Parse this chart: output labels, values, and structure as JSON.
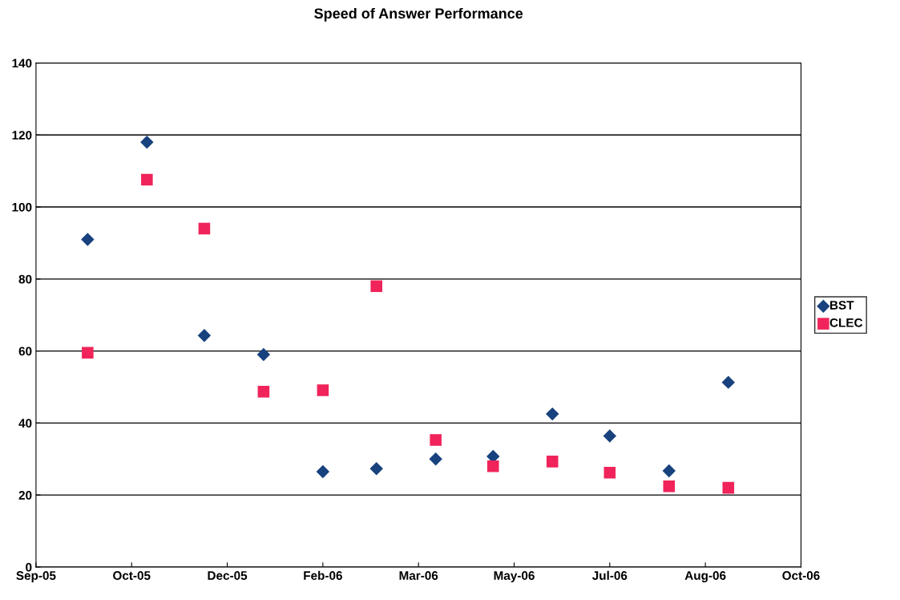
{
  "chart_data": {
    "type": "scatter",
    "title": "Speed of Answer Performance",
    "x": [
      "2005-10-01",
      "2005-11-01",
      "2005-12-01",
      "2006-01-01",
      "2006-02-01",
      "2006-03-01",
      "2006-04-01",
      "2006-05-01",
      "2006-06-01",
      "2006-07-01",
      "2006-08-01",
      "2006-09-01"
    ],
    "series": [
      {
        "name": "BST",
        "color": "#17427e",
        "marker": "diamond",
        "values": [
          91,
          118,
          64.3,
          59,
          26.5,
          27.3,
          30,
          30.7,
          42.5,
          36.4,
          26.7,
          51.3
        ]
      },
      {
        "name": "CLEC",
        "color": "#f0245a",
        "marker": "square",
        "values": [
          59.5,
          107.6,
          94,
          48.7,
          49.1,
          78,
          35.3,
          28,
          29.3,
          26.2,
          22.4,
          22
        ]
      }
    ],
    "xlim": [
      "2005-09-04",
      "2006-10-09"
    ],
    "xticks": [
      {
        "value": "2005-09-04",
        "label": "Sep-05"
      },
      {
        "value": "2005-10-24",
        "label": "Oct-05"
      },
      {
        "value": "2005-12-13",
        "label": "Dec-05"
      },
      {
        "value": "2006-02-01",
        "label": "Feb-06"
      },
      {
        "value": "2006-03-23",
        "label": "Mar-06"
      },
      {
        "value": "2006-05-12",
        "label": "May-06"
      },
      {
        "value": "2006-07-01",
        "label": "Jul-06"
      },
      {
        "value": "2006-08-20",
        "label": "Aug-06"
      },
      {
        "value": "2006-10-09",
        "label": "Oct-06"
      }
    ],
    "ylim": [
      0,
      140
    ],
    "yticks": [
      0,
      20,
      40,
      60,
      80,
      100,
      120,
      140
    ],
    "grid": "y",
    "legend": "right"
  }
}
